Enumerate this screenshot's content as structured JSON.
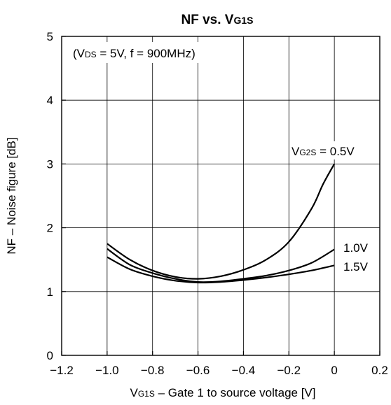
{
  "chart_data": {
    "type": "line",
    "title": {
      "main": "NF vs. V",
      "sub": "G1S"
    },
    "annotation": {
      "p1": "(V",
      "sub": "DS",
      "p2": " = 5V, f = 900MHz)"
    },
    "xlabel": {
      "main": "V",
      "sub": "G1S",
      "rest": " – Gate 1 to source voltage [V]"
    },
    "ylabel": "NF – Noise figure [dB]",
    "xlim": [
      -1.2,
      0.2
    ],
    "ylim": [
      0,
      5
    ],
    "x_ticks": [
      -1.2,
      -1.0,
      -0.8,
      -0.6,
      -0.4,
      -0.2,
      0,
      0.2
    ],
    "x_tick_labels": [
      "−1.2",
      "−1.0",
      "−0.8",
      "−0.6",
      "−0.4",
      "−0.2",
      "0",
      "0.2"
    ],
    "y_ticks": [
      0,
      1,
      2,
      3,
      4,
      5
    ],
    "y_tick_labels": [
      "0",
      "1",
      "2",
      "3",
      "4",
      "5"
    ],
    "grid": true,
    "series_label_prefix": {
      "main": "V",
      "sub": "G2S",
      "rest": " = "
    },
    "series": [
      {
        "name": "0.5V",
        "x": [
          -1.0,
          -0.9,
          -0.8,
          -0.7,
          -0.6,
          -0.5,
          -0.4,
          -0.3,
          -0.2,
          -0.1,
          -0.05,
          0
        ],
        "y": [
          1.75,
          1.5,
          1.33,
          1.23,
          1.2,
          1.24,
          1.34,
          1.5,
          1.78,
          2.3,
          2.68,
          3.0
        ]
      },
      {
        "name": "1.0V",
        "x": [
          -1.0,
          -0.9,
          -0.8,
          -0.7,
          -0.6,
          -0.5,
          -0.4,
          -0.3,
          -0.2,
          -0.1,
          0
        ],
        "y": [
          1.67,
          1.42,
          1.29,
          1.2,
          1.15,
          1.16,
          1.2,
          1.25,
          1.33,
          1.45,
          1.66
        ]
      },
      {
        "name": "1.5V",
        "x": [
          -1.0,
          -0.9,
          -0.8,
          -0.7,
          -0.6,
          -0.5,
          -0.4,
          -0.3,
          -0.2,
          -0.1,
          0
        ],
        "y": [
          1.54,
          1.35,
          1.24,
          1.17,
          1.14,
          1.15,
          1.18,
          1.22,
          1.27,
          1.33,
          1.41
        ]
      }
    ]
  }
}
